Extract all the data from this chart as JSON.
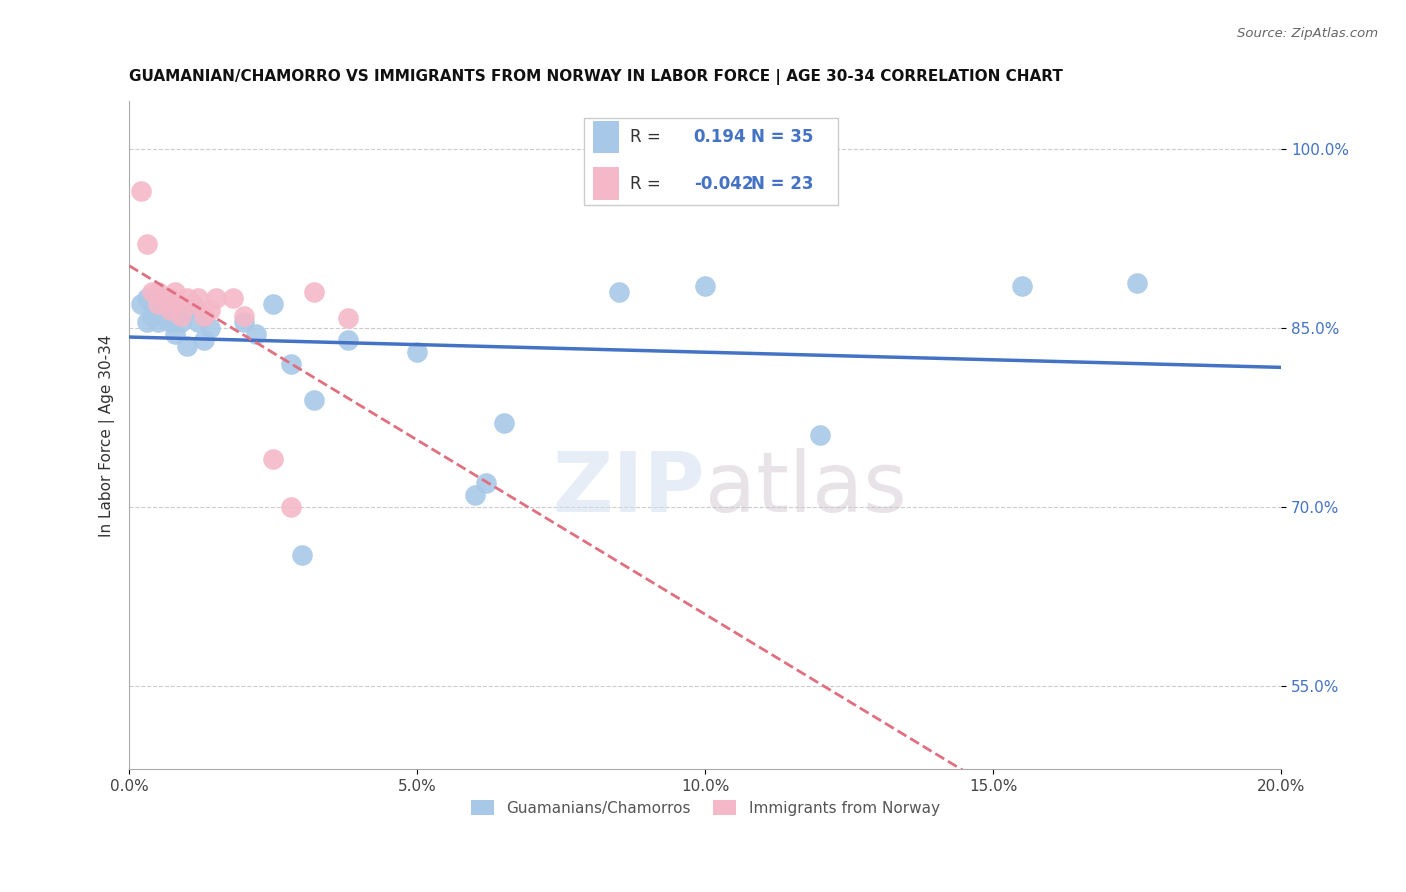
{
  "title": "GUAMANIAN/CHAMORRO VS IMMIGRANTS FROM NORWAY IN LABOR FORCE | AGE 30-34 CORRELATION CHART",
  "source": "Source: ZipAtlas.com",
  "ylabel": "In Labor Force | Age 30-34",
  "yticks": [
    55.0,
    70.0,
    85.0,
    100.0
  ],
  "xlim": [
    0.0,
    0.2
  ],
  "ylim": [
    0.48,
    1.04
  ],
  "blue_R": 0.194,
  "blue_N": 35,
  "pink_R": -0.042,
  "pink_N": 23,
  "blue_color": "#a8c8e8",
  "pink_color": "#f4b8c8",
  "blue_line_color": "#4472c4",
  "pink_line_color": "#e07080",
  "blue_scatter_x": [
    0.002,
    0.003,
    0.003,
    0.004,
    0.004,
    0.005,
    0.005,
    0.006,
    0.006,
    0.007,
    0.007,
    0.008,
    0.009,
    0.01,
    0.01,
    0.011,
    0.012,
    0.013,
    0.014,
    0.02,
    0.022,
    0.025,
    0.028,
    0.03,
    0.032,
    0.038,
    0.05,
    0.06,
    0.062,
    0.065,
    0.085,
    0.1,
    0.12,
    0.155,
    0.175
  ],
  "blue_scatter_y": [
    0.87,
    0.855,
    0.875,
    0.86,
    0.87,
    0.855,
    0.865,
    0.858,
    0.875,
    0.855,
    0.87,
    0.845,
    0.855,
    0.835,
    0.865,
    0.87,
    0.855,
    0.84,
    0.85,
    0.855,
    0.845,
    0.87,
    0.82,
    0.66,
    0.79,
    0.84,
    0.83,
    0.71,
    0.72,
    0.77,
    0.88,
    0.885,
    0.76,
    0.885,
    0.888
  ],
  "pink_scatter_x": [
    0.002,
    0.003,
    0.004,
    0.005,
    0.005,
    0.006,
    0.007,
    0.007,
    0.008,
    0.008,
    0.009,
    0.01,
    0.011,
    0.012,
    0.013,
    0.014,
    0.015,
    0.018,
    0.02,
    0.025,
    0.028,
    0.032,
    0.038
  ],
  "pink_scatter_y": [
    0.965,
    0.92,
    0.88,
    0.87,
    0.88,
    0.875,
    0.865,
    0.875,
    0.87,
    0.88,
    0.86,
    0.875,
    0.87,
    0.875,
    0.86,
    0.865,
    0.875,
    0.875,
    0.86,
    0.74,
    0.7,
    0.88,
    0.858
  ],
  "legend_label_blue": "Guamanians/Chamorros",
  "legend_label_pink": "Immigrants from Norway"
}
